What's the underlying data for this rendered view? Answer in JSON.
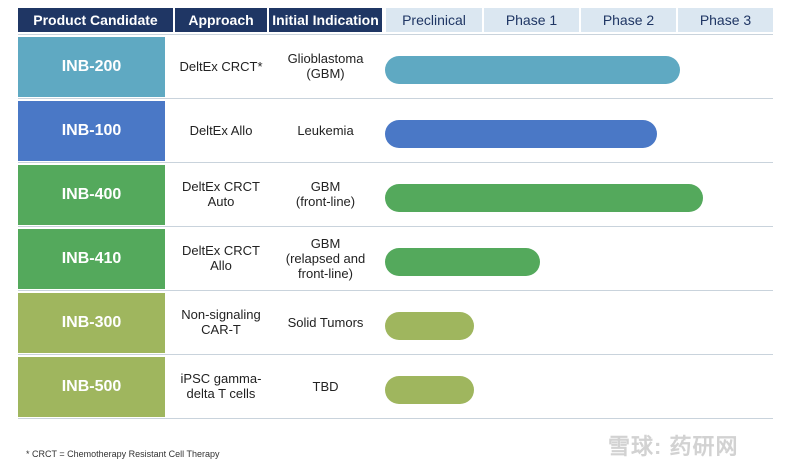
{
  "header": {
    "product": "Product Candidate",
    "approach": "Approach",
    "indication": "Initial Indication",
    "phases": [
      "Preclinical",
      "Phase 1",
      "Phase 2",
      "Phase 3"
    ]
  },
  "chart_data": {
    "type": "bar",
    "orientation": "horizontal",
    "stages": [
      "Preclinical",
      "Phase 1",
      "Phase 2",
      "Phase 3"
    ],
    "rows": [
      {
        "name": "INB-200",
        "approach": "DeltEx CRCT*",
        "indication": "Glioblastoma\n(GBM)",
        "progress": 0.76,
        "color": "#5fa9c2"
      },
      {
        "name": "INB-100",
        "approach": "DeltEx Allo",
        "indication": "Leukemia",
        "progress": 0.7,
        "color": "#4a78c6"
      },
      {
        "name": "INB-400",
        "approach": "DeltEx CRCT\nAuto",
        "indication": "GBM\n(front-line)",
        "progress": 0.82,
        "color": "#54a95c"
      },
      {
        "name": "INB-410",
        "approach": "DeltEx CRCT\nAllo",
        "indication": "GBM\n(relapsed and\nfront-line)",
        "progress": 0.4,
        "color": "#54a95c"
      },
      {
        "name": "INB-300",
        "approach": "Non-signaling\nCAR-T",
        "indication": "Solid Tumors",
        "progress": 0.23,
        "color": "#9fb65e"
      },
      {
        "name": "INB-500",
        "approach": "iPSC gamma-\ndelta T cells",
        "indication": "TBD",
        "progress": 0.23,
        "color": "#9fb65e"
      }
    ]
  },
  "footnote": "* CRCT = Chemotherapy Resistant Cell Therapy",
  "watermark": "雪球: 药研网"
}
